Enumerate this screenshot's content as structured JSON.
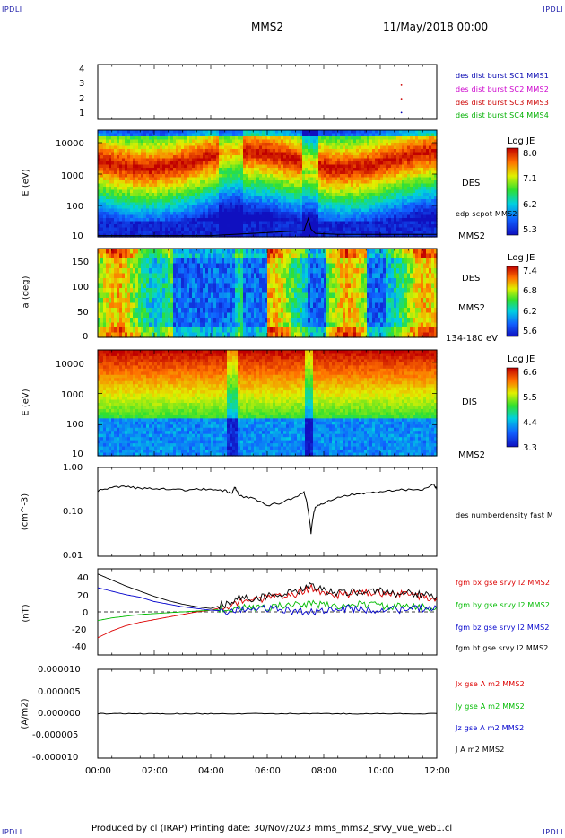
{
  "header": {
    "corner_left_top": "IPDLI",
    "corner_right_top": "IPDLI",
    "corner_left_bottom": "IPDLI",
    "corner_right_bottom": "IPDLI",
    "spacecraft": "MMS2",
    "datetime": "11/May/2018 00:00"
  },
  "footer": {
    "text": "Produced by cl (IRAP)   Printing date: 30/Nov/2023   mms_mms2_srvy_vue_web1.cl"
  },
  "colors": {
    "mms1": "#0000b0",
    "mms2": "#cc00cc",
    "mms3": "#cc0000",
    "mms4": "#00b000",
    "bx": "#dd0000",
    "by": "#00bb00",
    "bz": "#0000cc",
    "bt": "#000000"
  },
  "panels": {
    "p1": {
      "yticks": [
        "4",
        "3",
        "2",
        "1"
      ],
      "legend": [
        "des dist burst SC1 MMS1",
        "des dist burst SC2 MMS2",
        "des dist burst SC3 MMS3",
        "des dist burst SC4 MMS4"
      ]
    },
    "p2": {
      "ylabel": "E (eV)",
      "yticks": [
        "10000",
        "1000",
        "100",
        "10"
      ],
      "colorbar_title": "Log JE",
      "colorbar_ticks": [
        "8.0",
        "7.1",
        "6.2",
        "5.3"
      ],
      "instrument": "DES",
      "overlay": "edp scpot MMS2",
      "sc": "MMS2"
    },
    "p3": {
      "ylabel": "a (deg)",
      "yticks": [
        "150",
        "100",
        "50",
        "0"
      ],
      "colorbar_title": "Log JE",
      "colorbar_ticks": [
        "7.4",
        "6.8",
        "6.2",
        "5.6"
      ],
      "instrument": "DES",
      "sc": "MMS2",
      "energy_range": "134-180 eV"
    },
    "p4": {
      "ylabel": "E (eV)",
      "yticks": [
        "10000",
        "1000",
        "100",
        "10"
      ],
      "colorbar_title": "Log JE",
      "colorbar_ticks": [
        "6.6",
        "5.5",
        "4.4",
        "3.3"
      ],
      "instrument": "DIS",
      "sc": "MMS2"
    },
    "p5": {
      "ylabel": "(cm^-3)",
      "yticks": [
        "1.00",
        "0.10",
        "0.01"
      ],
      "legend": "des numberdensity fast M"
    },
    "p6": {
      "ylabel": "(nT)",
      "yticks": [
        "40",
        "20",
        "0",
        "-20",
        "-40"
      ],
      "legend": [
        "fgm bx gse srvy l2 MMS2",
        "fgm by gse srvy l2 MMS2",
        "fgm bz gse srvy l2 MMS2",
        "fgm bt gse srvy l2 MMS2"
      ]
    },
    "p7": {
      "ylabel": "(A/m2)",
      "yticks": [
        "0.000010",
        "0.000005",
        "0.000000",
        "-0.000005",
        "-0.000010"
      ],
      "legend": [
        "Jx gse A m2 MMS2",
        "Jy gse A m2 MMS2",
        "Jz gse A m2 MMS2",
        "J A m2 MMS2"
      ]
    }
  },
  "xaxis": {
    "ticks": [
      "00:00",
      "02:00",
      "04:00",
      "06:00",
      "08:00",
      "10:00",
      "12:00"
    ]
  },
  "chart_data": [
    {
      "type": "scatter",
      "panel": "burst availability",
      "x_range_hours": [
        0,
        12
      ],
      "ylim": [
        0.5,
        4.5
      ],
      "points": [
        {
          "x": 10.75,
          "y": 3,
          "series": "SC3"
        },
        {
          "x": 10.75,
          "y": 2,
          "series": "SC3"
        },
        {
          "x": 10.75,
          "y": 1,
          "series": "SC1"
        }
      ]
    },
    {
      "type": "heatmap",
      "panel": "DES energy spectrogram",
      "ylabel": "E (eV)",
      "yscale": "log",
      "ylim": [
        10,
        30000
      ],
      "color_range": [
        5.3,
        8.0
      ],
      "overlay_line": {
        "name": "edp scpot MMS2",
        "x_hours": [
          0,
          4,
          7.3,
          7.45,
          7.55,
          7.7,
          8.5,
          12
        ],
        "y": [
          11,
          11,
          16,
          40,
          18,
          13,
          12,
          12
        ]
      }
    },
    {
      "type": "heatmap",
      "panel": "DES pitch angle",
      "ylabel": "a (deg)",
      "ylim": [
        0,
        180
      ],
      "color_range": [
        5.6,
        7.4
      ]
    },
    {
      "type": "heatmap",
      "panel": "DIS energy spectrogram",
      "ylabel": "E (eV)",
      "yscale": "log",
      "ylim": [
        10,
        20000
      ],
      "color_range": [
        3.3,
        6.6
      ]
    },
    {
      "type": "line",
      "panel": "density",
      "ylabel": "(cm^-3)",
      "yscale": "log",
      "ylim": [
        0.01,
        1.0
      ],
      "x_hours": [
        0,
        0.5,
        1.0,
        1.5,
        2.0,
        2.5,
        3.0,
        3.5,
        4.0,
        4.5,
        4.75,
        4.85,
        5.0,
        5.5,
        6.0,
        6.5,
        7.0,
        7.3,
        7.45,
        7.55,
        7.7,
        8.0,
        8.5,
        9.0,
        9.5,
        10.0,
        10.5,
        11.0,
        11.5,
        11.9,
        12.0
      ],
      "y": [
        0.3,
        0.35,
        0.38,
        0.33,
        0.34,
        0.33,
        0.31,
        0.32,
        0.32,
        0.3,
        0.25,
        0.36,
        0.23,
        0.2,
        0.14,
        0.16,
        0.22,
        0.28,
        0.1,
        0.03,
        0.13,
        0.16,
        0.21,
        0.25,
        0.27,
        0.29,
        0.3,
        0.32,
        0.3,
        0.42,
        0.31
      ]
    },
    {
      "type": "line",
      "panel": "magnetic field",
      "ylabel": "(nT)",
      "ylim": [
        -50,
        50
      ],
      "x_hours": [
        0,
        0.5,
        1.0,
        1.5,
        2.0,
        2.5,
        3.0,
        3.5,
        4.0,
        4.5,
        5.0,
        5.5,
        6.0,
        6.5,
        7.0,
        7.5,
        8.0,
        8.5,
        9.0,
        9.5,
        10.0,
        10.5,
        11.0,
        11.5,
        12.0
      ],
      "series": [
        {
          "name": "fgm bx gse srvy l2 MMS2",
          "y": [
            -30,
            -22,
            -16,
            -12,
            -9,
            -6,
            -3,
            0,
            2,
            6,
            13,
            14,
            16,
            18,
            20,
            28,
            22,
            20,
            21,
            22,
            22,
            20,
            21,
            18,
            16
          ]
        },
        {
          "name": "fgm by gse srvy l2 MMS2",
          "y": [
            -10,
            -7,
            -5,
            -3,
            -2,
            -1,
            0,
            1,
            2,
            3,
            5,
            4,
            6,
            7,
            8,
            9,
            8,
            7,
            8,
            9,
            7,
            6,
            6,
            5,
            6
          ]
        },
        {
          "name": "fgm bz gse srvy l2 MMS2",
          "y": [
            28,
            24,
            20,
            17,
            12,
            9,
            6,
            4,
            2,
            1,
            2,
            3,
            4,
            2,
            1,
            0,
            2,
            3,
            4,
            3,
            2,
            3,
            2,
            4,
            5
          ]
        },
        {
          "name": "fgm bt gse srvy l2 MMS2",
          "y": [
            44,
            37,
            30,
            24,
            18,
            13,
            9,
            6,
            4,
            9,
            16,
            16,
            18,
            20,
            22,
            30,
            25,
            22,
            23,
            24,
            24,
            22,
            22,
            20,
            18
          ]
        }
      ]
    },
    {
      "type": "line",
      "panel": "current density",
      "ylabel": "(A/m2)",
      "ylim": [
        -1e-05,
        1e-05
      ],
      "x_hours": [
        0,
        12
      ],
      "series": [
        {
          "name": "J A m2 MMS2",
          "y": [
            0.0,
            0.0
          ]
        }
      ]
    }
  ]
}
